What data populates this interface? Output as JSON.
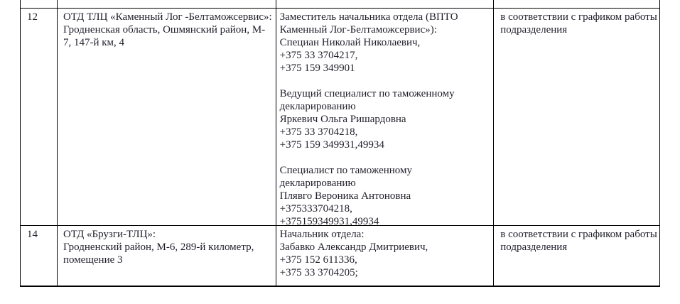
{
  "colors": {
    "background": "#ffffff",
    "border": "#000000",
    "text": "#1f1f2b"
  },
  "table": {
    "rows": [
      {
        "number": "12",
        "location": "ОТД ТЛЦ «Каменный Лог -Белтаможсервис»:\nГродненская область, Ошмянский район, М-\n7, 147-й км, 4",
        "contacts": "Заместитель начальника отдела (ВПТО\nКаменный Лог-Белтаможсервис»):\nСпециан Николай Николаевич,\n+375 33 3704217,\n+375 159 349901\n\nВедущий специалист по таможенному\nдекларированию\nЯркевич Ольга Ришардовна\n+375 33 3704218,\n+375 159 349931,49934\n\nСпециалист по таможенному\nдекларированию\nПлявго Вероника Антоновна\n+375333704218,\n+375159349931,49934",
        "schedule": "в соответствии с графиком работы\nподразделения"
      },
      {
        "number": "14",
        "location": "ОТД «Брузги-ТЛЦ»:\nГродненский район, М-6, 289-й километр,\nпомещение 3",
        "contacts": "Начальник отдела:\nЗабавко Александр Дмитриевич,\n+375 152 611336,\n+375 33 3704205;",
        "schedule": "в соответствии с графиком работы\nподразделения"
      }
    ]
  }
}
